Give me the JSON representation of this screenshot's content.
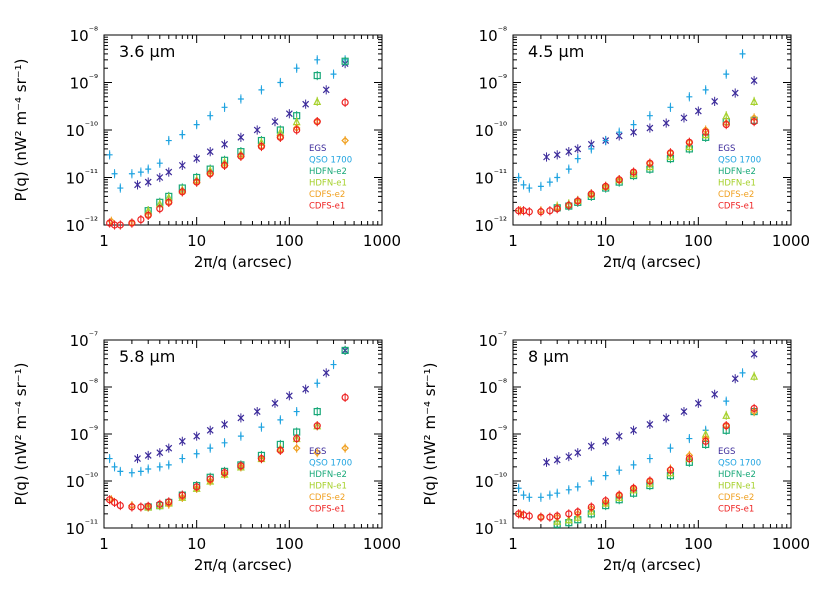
{
  "chart_data": [
    {
      "type": "scatter",
      "panel_label": "3.6 μm",
      "xlabel": "2π/q (arcsec)",
      "ylabel": "P(q) (nW² m⁻⁴ sr⁻¹)",
      "x_scale": "log",
      "y_scale": "log",
      "xlim": [
        1,
        1000
      ],
      "ylim": [
        1e-12,
        1e-08
      ],
      "xticklabels": [
        "1",
        "10",
        "100",
        "1000"
      ],
      "yticklabels": [
        "10⁻¹²",
        "10⁻¹¹",
        "10⁻¹⁰",
        "10⁻⁹",
        "10⁻⁸"
      ],
      "legend_position": "lower-right",
      "series": [
        {
          "name": "EGS",
          "color": "#3b2a9a",
          "marker": "x",
          "x": [
            2.3,
            3,
            4,
            5,
            7,
            10,
            14,
            20,
            30,
            45,
            70,
            100,
            150,
            250,
            400
          ],
          "y": [
            7e-12,
            8e-12,
            1e-11,
            1.3e-11,
            1.8e-11,
            2.5e-11,
            3.5e-11,
            5e-11,
            7e-11,
            1e-10,
            1.5e-10,
            2.2e-10,
            3.5e-10,
            7e-10,
            2.5e-09
          ]
        },
        {
          "name": "QSO 1700",
          "color": "#1fa3e0",
          "marker": "+",
          "x": [
            1.15,
            1.3,
            1.5,
            2,
            2.5,
            3,
            4,
            5,
            7,
            10,
            14,
            20,
            30,
            50,
            80,
            120,
            200,
            300,
            400
          ],
          "y": [
            3e-11,
            1.2e-11,
            6e-12,
            1.2e-11,
            1.3e-11,
            1.5e-11,
            2e-11,
            6e-11,
            8e-11,
            1.3e-10,
            2e-10,
            3e-10,
            4.5e-10,
            7e-10,
            1e-09,
            2e-09,
            3e-09,
            1.5e-09,
            3e-09
          ]
        },
        {
          "name": "HDFN-e2",
          "color": "#17a878",
          "marker": "square",
          "x": [
            3,
            4,
            5,
            7,
            10,
            14,
            20,
            30,
            50,
            80,
            120,
            200,
            400
          ],
          "y": [
            2e-12,
            3e-12,
            4e-12,
            6e-12,
            1e-11,
            1.5e-11,
            2.3e-11,
            3.5e-11,
            6e-11,
            1e-10,
            2e-10,
            1.4e-09,
            2.8e-09
          ]
        },
        {
          "name": "HDFN-e1",
          "color": "#a6d12c",
          "marker": "triangle",
          "x": [
            3,
            4,
            5,
            7,
            10,
            14,
            20,
            30,
            50,
            80,
            120,
            200
          ],
          "y": [
            2e-12,
            2.8e-12,
            3.8e-12,
            5.5e-12,
            9e-12,
            1.4e-11,
            2.1e-11,
            3.2e-11,
            5.5e-11,
            9e-11,
            1.5e-10,
            4e-10
          ]
        },
        {
          "name": "CDFS-e2",
          "color": "#f0a020",
          "marker": "diamond",
          "x": [
            1.2,
            2,
            3,
            5,
            7,
            10,
            14,
            20,
            30,
            50,
            80,
            120,
            200,
            400
          ],
          "y": [
            1.2e-12,
            1.1e-12,
            1.6e-12,
            3e-12,
            5e-12,
            8e-12,
            1.2e-11,
            1.8e-11,
            2.8e-11,
            4.5e-11,
            7e-11,
            1.1e-10,
            1.5e-10,
            6e-11
          ]
        },
        {
          "name": "CDFS-e1",
          "color": "#ee2222",
          "marker": "circle",
          "x": [
            1.15,
            1.3,
            1.5,
            2,
            2.5,
            3,
            4,
            5,
            7,
            10,
            14,
            20,
            30,
            50,
            80,
            120,
            200,
            400
          ],
          "y": [
            1.1e-12,
            1e-12,
            1e-12,
            1.1e-12,
            1.3e-12,
            1.6e-12,
            2.2e-12,
            3e-12,
            5e-12,
            8e-12,
            1.2e-11,
            1.8e-11,
            2.8e-11,
            4.5e-11,
            7e-11,
            1e-10,
            1.5e-10,
            3.8e-10
          ]
        }
      ]
    },
    {
      "type": "scatter",
      "panel_label": "4.5 μm",
      "xlabel": "2π/q (arcsec)",
      "ylabel": "",
      "x_scale": "log",
      "y_scale": "log",
      "xlim": [
        1,
        1000
      ],
      "ylim": [
        1e-12,
        1e-08
      ],
      "xticklabels": [
        "1",
        "10",
        "100",
        "1000"
      ],
      "yticklabels": [
        "10⁻¹²",
        "10⁻¹¹",
        "10⁻¹⁰",
        "10⁻⁹",
        "10⁻⁸"
      ],
      "legend_position": "lower-right",
      "series": [
        {
          "name": "EGS",
          "color": "#3b2a9a",
          "marker": "x",
          "x": [
            2.3,
            3,
            4,
            5,
            7,
            10,
            14,
            20,
            30,
            45,
            70,
            100,
            150,
            250,
            400
          ],
          "y": [
            2.7e-11,
            3e-11,
            3.5e-11,
            4e-11,
            5e-11,
            6e-11,
            7.5e-11,
            9e-11,
            1.1e-10,
            1.4e-10,
            1.8e-10,
            2.5e-10,
            4e-10,
            6e-10,
            1.1e-09
          ]
        },
        {
          "name": "QSO 1700",
          "color": "#1fa3e0",
          "marker": "+",
          "x": [
            1.15,
            1.3,
            1.5,
            2,
            2.5,
            3,
            4,
            5,
            7,
            10,
            14,
            20,
            30,
            50,
            80,
            120,
            200,
            300
          ],
          "y": [
            1e-11,
            7e-12,
            6e-12,
            6.5e-12,
            8e-12,
            1e-11,
            1.5e-11,
            2.5e-11,
            4e-11,
            6e-11,
            9e-11,
            1.3e-10,
            2e-10,
            3e-10,
            5e-10,
            7e-10,
            1.5e-09,
            4e-09
          ]
        },
        {
          "name": "HDFN-e2",
          "color": "#17a878",
          "marker": "square",
          "x": [
            3,
            4,
            5,
            7,
            10,
            14,
            20,
            30,
            50,
            80,
            120,
            200,
            400
          ],
          "y": [
            2.3e-12,
            2.5e-12,
            3e-12,
            4e-12,
            6e-12,
            8e-12,
            1.1e-11,
            1.5e-11,
            2.5e-11,
            4e-11,
            7e-11,
            1.5e-10,
            1.6e-10
          ]
        },
        {
          "name": "HDFN-e1",
          "color": "#a6d12c",
          "marker": "triangle",
          "x": [
            3,
            4,
            5,
            7,
            10,
            14,
            20,
            30,
            50,
            80,
            120,
            200,
            400
          ],
          "y": [
            2.5e-12,
            2.8e-12,
            3.3e-12,
            4.5e-12,
            6.5e-12,
            9e-12,
            1.2e-11,
            1.7e-11,
            2.8e-11,
            4.5e-11,
            8e-11,
            2e-10,
            4e-10
          ]
        },
        {
          "name": "CDFS-e2",
          "color": "#f0a020",
          "marker": "diamond",
          "x": [
            1.2,
            2,
            3,
            5,
            7,
            10,
            14,
            20,
            30,
            50,
            80,
            120,
            200,
            400
          ],
          "y": [
            2e-12,
            2e-12,
            2.3e-12,
            3.2e-12,
            4.5e-12,
            6.5e-12,
            9e-12,
            1.3e-11,
            2e-11,
            3.3e-11,
            5.5e-11,
            1e-10,
            1.4e-10,
            1.8e-10
          ]
        },
        {
          "name": "CDFS-e1",
          "color": "#ee2222",
          "marker": "circle",
          "x": [
            1.15,
            1.3,
            1.5,
            2,
            2.5,
            3,
            4,
            5,
            7,
            10,
            14,
            20,
            30,
            50,
            80,
            120,
            200,
            400
          ],
          "y": [
            2e-12,
            2e-12,
            1.9e-12,
            1.9e-12,
            2e-12,
            2.2e-12,
            2.6e-12,
            3.2e-12,
            4.5e-12,
            6.5e-12,
            9e-12,
            1.3e-11,
            2e-11,
            3.3e-11,
            5.5e-11,
            9e-11,
            1.3e-10,
            1.5e-10
          ]
        }
      ]
    },
    {
      "type": "scatter",
      "panel_label": "5.8 μm",
      "xlabel": "2π/q (arcsec)",
      "ylabel": "P(q) (nW² m⁻⁴ sr⁻¹)",
      "x_scale": "log",
      "y_scale": "log",
      "xlim": [
        1,
        1000
      ],
      "ylim": [
        1e-11,
        1e-07
      ],
      "xticklabels": [
        "1",
        "10",
        "100",
        "1000"
      ],
      "yticklabels": [
        "10⁻¹¹",
        "10⁻¹⁰",
        "10⁻⁹",
        "10⁻⁸",
        "10⁻⁷"
      ],
      "legend_position": "lower-right",
      "series": [
        {
          "name": "EGS",
          "color": "#3b2a9a",
          "marker": "x",
          "x": [
            2.3,
            3,
            4,
            5,
            7,
            10,
            14,
            20,
            30,
            45,
            70,
            100,
            150,
            250,
            400
          ],
          "y": [
            3e-10,
            3.5e-10,
            4e-10,
            5e-10,
            7e-10,
            9e-10,
            1.2e-09,
            1.6e-09,
            2.2e-09,
            3e-09,
            4.5e-09,
            6.5e-09,
            9e-09,
            2e-08,
            6e-08
          ]
        },
        {
          "name": "QSO 1700",
          "color": "#1fa3e0",
          "marker": "+",
          "x": [
            1.15,
            1.3,
            1.5,
            2,
            2.5,
            3,
            4,
            5,
            7,
            10,
            14,
            20,
            30,
            50,
            80,
            120,
            200,
            300
          ],
          "y": [
            3e-10,
            2e-10,
            1.6e-10,
            1.5e-10,
            1.6e-10,
            1.8e-10,
            2e-10,
            2.2e-10,
            3e-10,
            3.8e-10,
            5e-10,
            6.5e-10,
            9e-10,
            1.4e-09,
            2e-09,
            3e-09,
            1.2e-08,
            3e-08
          ]
        },
        {
          "name": "HDFN-e2",
          "color": "#17a878",
          "marker": "square",
          "x": [
            3,
            4,
            5,
            7,
            10,
            14,
            20,
            30,
            50,
            80,
            120,
            200,
            400
          ],
          "y": [
            2.8e-11,
            3e-11,
            3.5e-11,
            5e-11,
            8e-11,
            1.2e-10,
            1.6e-10,
            2.2e-10,
            3.5e-10,
            6e-10,
            1.1e-09,
            3e-09,
            6e-08
          ]
        },
        {
          "name": "HDFN-e1",
          "color": "#a6d12c",
          "marker": "triangle",
          "x": [
            3,
            4,
            5,
            7,
            10,
            14,
            20,
            30,
            50,
            80,
            120,
            200
          ],
          "y": [
            2.8e-11,
            3e-11,
            3.4e-11,
            4.5e-11,
            7e-11,
            1e-10,
            1.4e-10,
            2e-10,
            3e-10,
            5e-10,
            8e-10,
            1.5e-09
          ]
        },
        {
          "name": "CDFS-e2",
          "color": "#f0a020",
          "marker": "diamond",
          "x": [
            1.2,
            2,
            3,
            5,
            7,
            10,
            14,
            20,
            30,
            50,
            80,
            120,
            200,
            400
          ],
          "y": [
            4e-11,
            3e-11,
            2.8e-11,
            3.2e-11,
            4.5e-11,
            7e-11,
            1e-10,
            1.4e-10,
            2e-10,
            3e-10,
            4.5e-10,
            5e-10,
            4e-10,
            5e-10
          ]
        },
        {
          "name": "CDFS-e1",
          "color": "#ee2222",
          "marker": "circle",
          "x": [
            1.15,
            1.3,
            1.5,
            2,
            2.5,
            3,
            4,
            5,
            7,
            10,
            14,
            20,
            30,
            50,
            80,
            120,
            200,
            400
          ],
          "y": [
            4e-11,
            3.5e-11,
            3e-11,
            2.8e-11,
            2.8e-11,
            2.9e-11,
            3.2e-11,
            3.6e-11,
            5e-11,
            7.5e-11,
            1.1e-10,
            1.5e-10,
            2.1e-10,
            3e-10,
            4.5e-10,
            8e-10,
            1.5e-09,
            6e-09
          ]
        }
      ]
    },
    {
      "type": "scatter",
      "panel_label": "8 μm",
      "xlabel": "2π/q (arcsec)",
      "ylabel": "P(q) (nW² m⁻⁴ sr⁻¹)",
      "x_scale": "log",
      "y_scale": "log",
      "xlim": [
        1,
        1000
      ],
      "ylim": [
        1e-11,
        1e-07
      ],
      "xticklabels": [
        "1",
        "10",
        "100",
        "1000"
      ],
      "yticklabels": [
        "10⁻¹¹",
        "10⁻¹⁰",
        "10⁻⁹",
        "10⁻⁸",
        "10⁻⁷"
      ],
      "legend_position": "lower-right",
      "series": [
        {
          "name": "EGS",
          "color": "#3b2a9a",
          "marker": "x",
          "x": [
            2.3,
            3,
            4,
            5,
            7,
            10,
            14,
            20,
            30,
            45,
            70,
            100,
            150,
            250,
            400
          ],
          "y": [
            2.5e-10,
            2.8e-10,
            3.3e-10,
            4e-10,
            5.5e-10,
            7e-10,
            9e-10,
            1.2e-09,
            1.6e-09,
            2.2e-09,
            3e-09,
            4.5e-09,
            7e-09,
            1.5e-08,
            5e-08
          ]
        },
        {
          "name": "QSO 1700",
          "color": "#1fa3e0",
          "marker": "+",
          "x": [
            1.15,
            1.3,
            1.5,
            2,
            2.5,
            3,
            4,
            5,
            7,
            10,
            14,
            20,
            30,
            50,
            80,
            120,
            200,
            300
          ],
          "y": [
            7e-11,
            5e-11,
            4.5e-11,
            4.5e-11,
            5e-11,
            5.5e-11,
            6.5e-11,
            7.5e-11,
            1e-10,
            1.3e-10,
            1.7e-10,
            2.2e-10,
            3e-10,
            5e-10,
            8e-10,
            1.2e-09,
            5e-09,
            2e-08
          ]
        },
        {
          "name": "HDFN-e2",
          "color": "#17a878",
          "marker": "square",
          "x": [
            3,
            4,
            5,
            7,
            10,
            14,
            20,
            30,
            50,
            80,
            120,
            200,
            400
          ],
          "y": [
            1.2e-11,
            1.3e-11,
            1.5e-11,
            2e-11,
            3e-11,
            4e-11,
            5.5e-11,
            8e-11,
            1.3e-10,
            2.5e-10,
            6e-10,
            1.2e-09,
            3e-09
          ]
        },
        {
          "name": "HDFN-e1",
          "color": "#a6d12c",
          "marker": "triangle",
          "x": [
            3,
            4,
            5,
            7,
            10,
            14,
            20,
            30,
            50,
            80,
            120,
            200,
            400
          ],
          "y": [
            1.4e-11,
            1.5e-11,
            1.7e-11,
            2.3e-11,
            3.4e-11,
            4.5e-11,
            6.5e-11,
            9e-11,
            1.5e-10,
            3e-10,
            1e-09,
            2.5e-09,
            1.7e-08
          ]
        },
        {
          "name": "CDFS-e2",
          "color": "#f0a020",
          "marker": "diamond",
          "x": [
            1.2,
            2,
            3,
            5,
            7,
            10,
            14,
            20,
            30,
            50,
            80,
            120,
            200,
            400
          ],
          "y": [
            2e-11,
            1.7e-11,
            1.7e-11,
            2e-11,
            2.6e-11,
            3.5e-11,
            5e-11,
            7e-11,
            1e-10,
            1.8e-10,
            3.5e-10,
            8e-10,
            1.5e-09,
            3e-09
          ]
        },
        {
          "name": "CDFS-e1",
          "color": "#ee2222",
          "marker": "circle",
          "x": [
            1.15,
            1.3,
            1.5,
            2,
            2.5,
            3,
            4,
            5,
            7,
            10,
            14,
            20,
            30,
            50,
            80,
            120,
            200,
            400
          ],
          "y": [
            2e-11,
            1.9e-11,
            1.8e-11,
            1.7e-11,
            1.7e-11,
            1.8e-11,
            2e-11,
            2.2e-11,
            2.8e-11,
            3.8e-11,
            5e-11,
            7e-11,
            1e-10,
            1.7e-10,
            3e-10,
            7e-10,
            1.5e-09,
            3.5e-09
          ]
        }
      ]
    }
  ]
}
